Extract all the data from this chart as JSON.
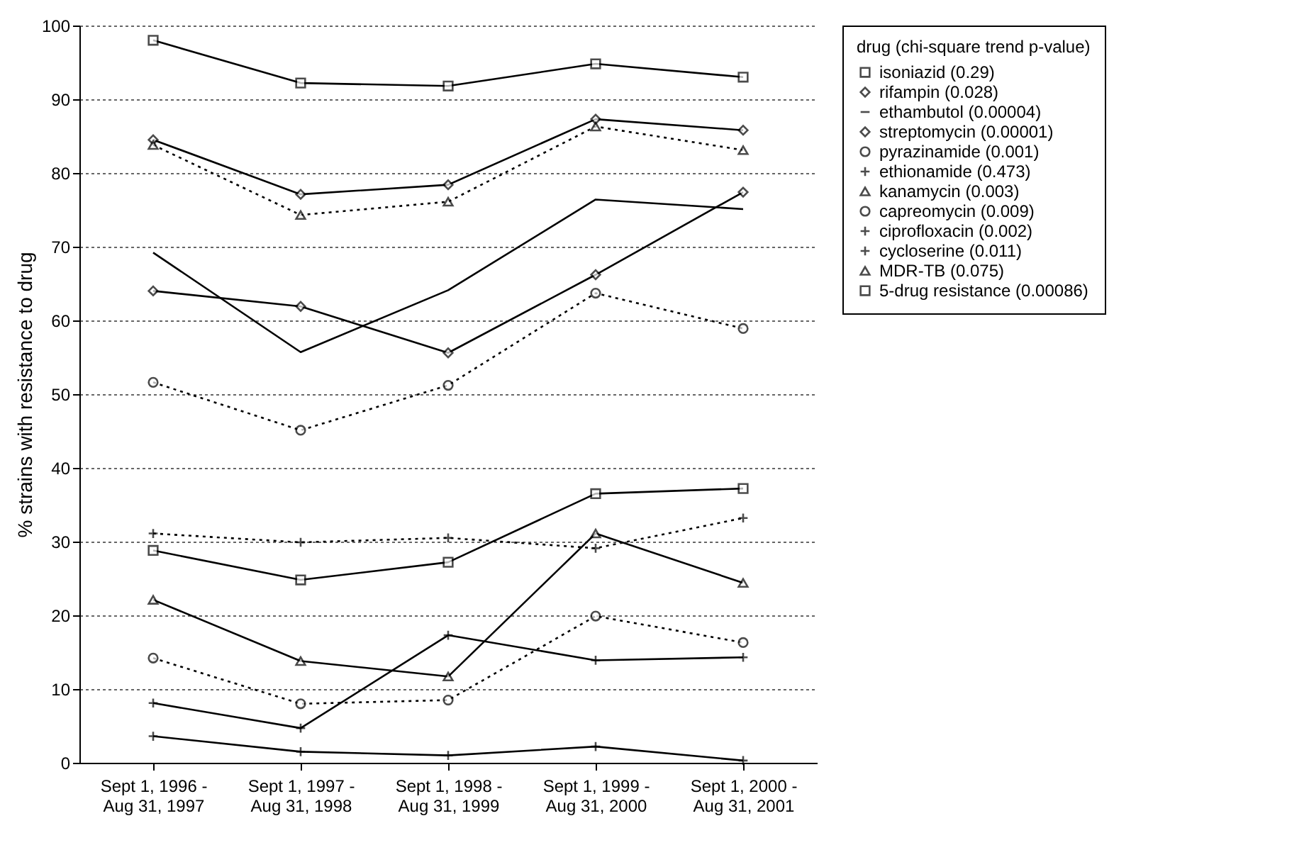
{
  "chart_data": {
    "type": "line",
    "ylabel": "% strains with resistance to drug",
    "legend_title": "drug (chi-square trend p-value)",
    "legend": "right",
    "grid": "y",
    "categories": [
      "Sept 1, 1996 - Aug 31, 1997",
      "Sept 1, 1997 - Aug 31, 1998",
      "Sept 1, 1998 - Aug 31, 1999",
      "Sept 1, 1999 - Aug 31, 2000",
      "Sept 1, 2000 - Aug 31, 2001"
    ],
    "ylim": [
      0,
      100
    ],
    "yticks": [
      0,
      10,
      20,
      30,
      40,
      50,
      60,
      70,
      80,
      90,
      100
    ],
    "series": [
      {
        "name": "isoniazid (0.29)",
        "color": "#000000",
        "marker": "square",
        "line_style": "solid",
        "values": [
          98,
          92.2,
          91.8,
          94.8,
          93
        ]
      },
      {
        "name": "rifampin (0.028)",
        "color": "#000000",
        "marker": "diamond",
        "line_style": "solid",
        "values": [
          84.5,
          77.1,
          78.4,
          87.3,
          85.8
        ]
      },
      {
        "name": "ethambutol (0.00004)",
        "color": "#000000",
        "marker": "none",
        "line_style": "solid",
        "values": [
          69.2,
          55.7,
          64.1,
          76.4,
          75.1
        ]
      },
      {
        "name": "streptomycin (0.00001)",
        "color": "#000000",
        "marker": "diamond",
        "line_style": "solid",
        "values": [
          64,
          61.9,
          55.6,
          66.2,
          77.4
        ]
      },
      {
        "name": "pyrazinamide (0.001)",
        "color": "#000000",
        "marker": "circle",
        "line_style": "dotted",
        "values": [
          51.6,
          45.1,
          51.2,
          63.7,
          58.9
        ]
      },
      {
        "name": "ethionamide (0.473)",
        "color": "#000000",
        "marker": "cross",
        "line_style": "dotted",
        "values": [
          31.1,
          29.9,
          30.5,
          29.1,
          33.2
        ]
      },
      {
        "name": "kanamycin (0.003)",
        "color": "#000000",
        "marker": "triangle",
        "line_style": "solid",
        "values": [
          22.1,
          13.8,
          11.7,
          31.1,
          24.4
        ]
      },
      {
        "name": "capreomycin (0.009)",
        "color": "#000000",
        "marker": "circle",
        "line_style": "dotted",
        "values": [
          14.2,
          8,
          8.5,
          19.9,
          16.3
        ]
      },
      {
        "name": "ciprofloxacin (0.002)",
        "color": "#000000",
        "marker": "cross",
        "line_style": "solid",
        "values": [
          8.1,
          4.7,
          17.3,
          13.9,
          14.3
        ]
      },
      {
        "name": "cycloserine (0.011)",
        "color": "#000000",
        "marker": "cross",
        "line_style": "solid",
        "values": [
          3.6,
          1.5,
          1,
          2.2,
          0.3
        ]
      },
      {
        "name": "MDR-TB (0.075)",
        "color": "#000000",
        "marker": "triangle",
        "line_style": "dotted",
        "values": [
          83.8,
          74.3,
          76.1,
          86.3,
          83.1
        ]
      },
      {
        "name": "5-drug resistance (0.00086)",
        "color": "#000000",
        "marker": "square",
        "line_style": "solid",
        "values": [
          28.8,
          24.8,
          27.2,
          36.5,
          37.2
        ]
      }
    ]
  }
}
